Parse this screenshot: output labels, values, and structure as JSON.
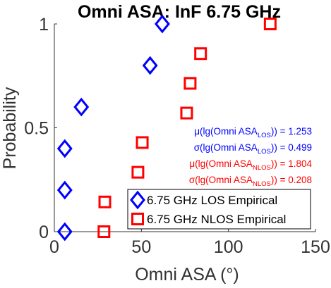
{
  "chart_data": {
    "type": "scatter",
    "title": "Omni ASA: InF 6.75 GHz",
    "xlabel": "Omni ASA (°)",
    "ylabel": "Probability",
    "xlim": [
      0,
      150
    ],
    "ylim": [
      0,
      1
    ],
    "xticks": [
      0,
      50,
      100,
      150
    ],
    "yticks": [
      0,
      0.5,
      1
    ],
    "xtick_labels": [
      "0",
      "50",
      "100",
      "150"
    ],
    "ytick_labels": [
      "0",
      "0.5",
      "1"
    ],
    "grid": false,
    "legend_position": "bottom-right",
    "series": [
      {
        "name": "6.75 GHz LOS Empirical",
        "marker": "diamond",
        "color": "#0000ff",
        "x": [
          6,
          6,
          6,
          15.5,
          55,
          62
        ],
        "y": [
          0.0,
          0.2,
          0.4,
          0.6,
          0.8,
          1.0
        ]
      },
      {
        "name": "6.75 GHz NLOS Empirical",
        "marker": "square",
        "color": "#ff0000",
        "x": [
          28.5,
          29,
          48,
          50.5,
          76,
          78,
          84,
          124
        ],
        "y": [
          0.0,
          0.143,
          0.286,
          0.429,
          0.571,
          0.714,
          0.857,
          1.0
        ]
      }
    ],
    "annotations": [
      {
        "color": "#0000ff",
        "prefix": "μ(lg(Omni ASA",
        "sub": "LOS",
        "suffix": ")) = 1.253"
      },
      {
        "color": "#0000ff",
        "prefix": "σ(lg(Omni ASA",
        "sub": "LOS",
        "suffix": ")) = 0.499"
      },
      {
        "color": "#ff0000",
        "prefix": "μ(lg(Omni ASA",
        "sub": "NLOS",
        "suffix": ")) = 1.804"
      },
      {
        "color": "#ff0000",
        "prefix": "σ(lg(Omni ASA",
        "sub": "NLOS",
        "suffix": ")) = 0.208"
      }
    ]
  }
}
